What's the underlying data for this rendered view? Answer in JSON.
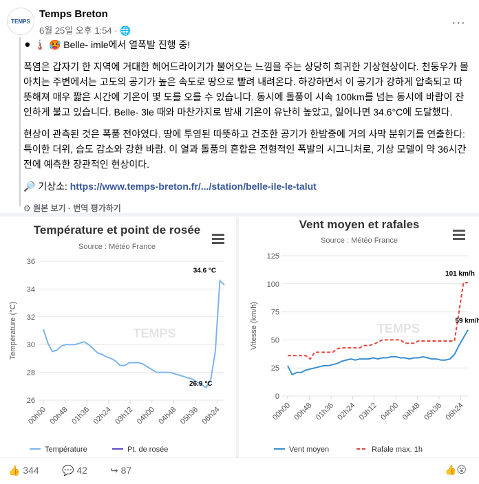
{
  "post": {
    "author": "Temps Breton",
    "avatar_text": "TEMPS",
    "meta": "6월 25일 오후 1:54 · ",
    "headline": "⚫ 🌡️ 🥵 Belle- imle에서 열폭발 진행 중!",
    "paragraphs": [
      "폭염은 갑자기 한 지역에 거대한 헤어드라이기가 불어오는 느낌을 주는 상당히 희귀한 기상현상이다. 천둥우가 몰아치는 주변에서는 고도의 공기가 높은 속도로 땅으로 빨려 내려온다. 하강하면서 이 공기가 강하게 압축되고 따뜻해져 매우 짧은 시간에 기온이 몇 도를 오를 수 있습니다. 동시에 돌풍이 시속 100km를 넘는 동시에 바람이 잔인하게 불고 있습니다. Belle- 3le 때와 마찬가지로 밤새 기온이 유난히 높았고, 일어나면 34.6°C에 도달했다.",
      "현상이 관측된 것은 폭풍 전야였다. 땅에 투영된 따뜻하고 건조한 공기가 한밤중에 거의 사막 분위기를 연출한다: 특이한 더위, 습도 감소와 강한 바람. 이 열과 돌풍의 혼합은 전형적인 폭발의 시그니처로, 기상 모델이 약 36시간 전에 예측한 장관적인 현상이다."
    ],
    "source_label": "🔎 기상소: ",
    "source_link": "https://www.temps-breton.fr/.../station/belle-ile-le-talut",
    "see_original": "원본 보기",
    "rate_translation": "번역 평가하기"
  },
  "chart_data": [
    {
      "type": "line",
      "title": "Température et point de rosée",
      "subtitle": "Source : Météo France",
      "watermark": "TEMPS",
      "y_label": "Température (°C)",
      "x": [
        0,
        10,
        20,
        30,
        40,
        50,
        60,
        70,
        80,
        90,
        100,
        110,
        120,
        130,
        140,
        150,
        160,
        170,
        180,
        190,
        200,
        210,
        220,
        230,
        240,
        250,
        260,
        270,
        280,
        290,
        300,
        310,
        320,
        330,
        340,
        350,
        360,
        370,
        380,
        390,
        400
      ],
      "xlim": [
        0,
        400
      ],
      "xticks": [
        {
          "value": 0,
          "label": "00h00"
        },
        {
          "value": 48,
          "label": "00h48"
        },
        {
          "value": 96,
          "label": "01h36"
        },
        {
          "value": 144,
          "label": "02h24"
        },
        {
          "value": 192,
          "label": "03h12"
        },
        {
          "value": 240,
          "label": "04h00"
        },
        {
          "value": 288,
          "label": "04h48"
        },
        {
          "value": 336,
          "label": "05h36"
        },
        {
          "value": 384,
          "label": "06h24"
        }
      ],
      "ylim": [
        26,
        36
      ],
      "yticks": [
        26,
        28,
        30,
        32,
        34,
        36
      ],
      "grid": true,
      "series": [
        {
          "name": "Température",
          "color": "#7cb5ec",
          "values": [
            31.1,
            30.1,
            29.5,
            29.6,
            29.9,
            30.0,
            30.0,
            30.0,
            30.1,
            30.2,
            30.0,
            29.7,
            29.4,
            29.3,
            29.1,
            29.0,
            28.8,
            28.5,
            28.5,
            28.7,
            28.7,
            28.7,
            28.6,
            28.4,
            28.2,
            28.0,
            28.0,
            28.0,
            28.0,
            27.9,
            27.8,
            27.7,
            27.6,
            27.5,
            27.3,
            27.1,
            26.9,
            27.5,
            29.5,
            34.6,
            34.3
          ]
        },
        {
          "name": "Pt. de rosée",
          "color": "#5b4fc9"
        }
      ],
      "annotations": [
        {
          "text": "34.6 °C",
          "x": 390,
          "y": 34.6
        },
        {
          "text": "26.9 °C",
          "x": 360,
          "y": 26.9
        }
      ]
    },
    {
      "type": "line",
      "title": "Vent moyen et rafales",
      "subtitle": "Source : Météo France",
      "watermark": "TEMPS",
      "y_label": "Vitesse (km/h)",
      "x": [
        0,
        10,
        20,
        30,
        40,
        50,
        60,
        70,
        80,
        90,
        100,
        110,
        120,
        130,
        140,
        150,
        160,
        170,
        180,
        190,
        200,
        210,
        220,
        230,
        240,
        250,
        260,
        270,
        280,
        290,
        300,
        310,
        320,
        330,
        340,
        350,
        360,
        370,
        380,
        390,
        400
      ],
      "xlim": [
        0,
        400
      ],
      "xticks": [
        {
          "value": 0,
          "label": "00h00"
        },
        {
          "value": 48,
          "label": "00h48"
        },
        {
          "value": 96,
          "label": "01h36"
        },
        {
          "value": 144,
          "label": "02h24"
        },
        {
          "value": 192,
          "label": "03h12"
        },
        {
          "value": 240,
          "label": "04h00"
        },
        {
          "value": 288,
          "label": "04h48"
        },
        {
          "value": 336,
          "label": "05h36"
        },
        {
          "value": 384,
          "label": "06h24"
        }
      ],
      "ylim": [
        0,
        125
      ],
      "yticks": [
        0,
        25,
        50,
        75,
        100,
        125
      ],
      "grid": true,
      "series": [
        {
          "name": "Vent moyen",
          "color": "#3a8fd0",
          "values": [
            27,
            19,
            21,
            21,
            23,
            24,
            25,
            26,
            27,
            27,
            28,
            29,
            31,
            32,
            33,
            32,
            33,
            33,
            33,
            34,
            33,
            34,
            34,
            35,
            35,
            34,
            34,
            33,
            34,
            34,
            35,
            34,
            33,
            33,
            32,
            32,
            33,
            37,
            45,
            52,
            59
          ]
        },
        {
          "name": "Rafale max. 1h",
          "color": "#e8473f",
          "dashed": true,
          "values": [
            36,
            36,
            36,
            36,
            36,
            33,
            39,
            39,
            39,
            39,
            39,
            42,
            43,
            43,
            43,
            43,
            43,
            45,
            45,
            46,
            48,
            50,
            50,
            50,
            50,
            50,
            47,
            47,
            47,
            49,
            49,
            49,
            49,
            49,
            49,
            49,
            49,
            49,
            75,
            101,
            101
          ]
        }
      ],
      "annotations": [
        {
          "text": "101 km/h",
          "x": 390,
          "y": 101
        },
        {
          "text": "59 km/h",
          "x": 400,
          "y": 59
        }
      ]
    }
  ],
  "footer": {
    "likes": "344",
    "comments": "42",
    "shares": "87"
  }
}
